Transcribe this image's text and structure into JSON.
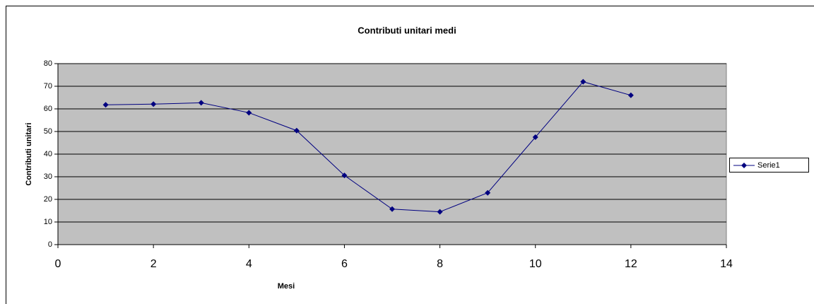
{
  "chart_data": {
    "type": "line",
    "title": "Contributi unitari medi",
    "x_label": "Mesi",
    "y_label": "Contributi unitari",
    "x": [
      1,
      2,
      3,
      4,
      5,
      6,
      7,
      8,
      9,
      10,
      11,
      12
    ],
    "series": [
      {
        "name": "Serie1",
        "color": "#000080",
        "values": [
          61.8,
          62.1,
          62.7,
          58.3,
          50.4,
          30.6,
          15.7,
          14.5,
          22.9,
          47.5,
          72,
          66
        ]
      }
    ],
    "xlim": [
      0,
      14
    ],
    "xticks": [
      0,
      2,
      4,
      6,
      8,
      10,
      12,
      14
    ],
    "ylim": [
      0,
      80
    ],
    "yticks": [
      0,
      10,
      20,
      30,
      40,
      50,
      60,
      70,
      80
    ],
    "grid": true,
    "legend": "right",
    "plot_background": "#c0c0c0"
  }
}
